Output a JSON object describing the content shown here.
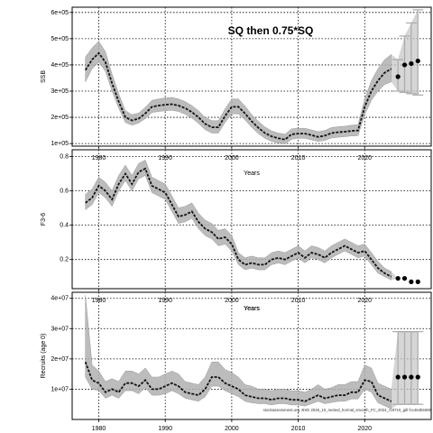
{
  "figure": {
    "title": "SQ then 0.75*SQ",
    "footnote": "stockassessment.org, BXD 2026_10_nested_hormal_smooth_FC_2024_r19710_gitl fcc464b6089"
  },
  "chart_data": [
    {
      "type": "line",
      "name": "ssb",
      "ylabel": "SSB",
      "xlabel": "Years",
      "xlim": [
        1976,
        2030
      ],
      "ylim": [
        90000,
        620000
      ],
      "x_ticks": [
        1980,
        1990,
        2000,
        2010,
        2020
      ],
      "y_ticks": [
        100000,
        200000,
        300000,
        400000,
        500000,
        600000
      ],
      "y_tick_labels": [
        "1e+05",
        "2e+05",
        "3e+05",
        "4e+05",
        "5e+05",
        "6e+05"
      ],
      "grid": true,
      "series": {
        "x": [
          1978,
          1979,
          1980,
          1981,
          1982,
          1983,
          1984,
          1985,
          1986,
          1987,
          1988,
          1989,
          1990,
          1991,
          1992,
          1993,
          1994,
          1995,
          1996,
          1997,
          1998,
          1999,
          2000,
          2001,
          2002,
          2003,
          2004,
          2005,
          2006,
          2007,
          2008,
          2009,
          2010,
          2011,
          2012,
          2013,
          2014,
          2015,
          2016,
          2017,
          2018,
          2019,
          2020,
          2021,
          2022,
          2023,
          2024
        ],
        "y": [
          380000,
          420000,
          445000,
          410000,
          330000,
          260000,
          200000,
          188000,
          195000,
          215000,
          240000,
          245000,
          248000,
          250000,
          245000,
          235000,
          220000,
          200000,
          175000,
          162000,
          162000,
          205000,
          240000,
          240000,
          215000,
          185000,
          160000,
          140000,
          127000,
          120000,
          115000,
          135000,
          138000,
          138000,
          132000,
          125000,
          130000,
          140000,
          143000,
          145000,
          148000,
          150000,
          240000,
          300000,
          340000,
          370000,
          385000
        ],
        "lower": [
          335000,
          385000,
          410000,
          375000,
          300000,
          235000,
          180000,
          170000,
          178000,
          195000,
          218000,
          222000,
          225000,
          227000,
          222000,
          212000,
          197000,
          177000,
          153000,
          140000,
          140000,
          180000,
          213000,
          213000,
          190000,
          162000,
          138000,
          120000,
          108000,
          102000,
          98000,
          116000,
          120000,
          120000,
          114000,
          108000,
          112000,
          121000,
          124000,
          126000,
          129000,
          130000,
          210000,
          265000,
          300000,
          325000,
          335000
        ],
        "upper": [
          430000,
          465000,
          490000,
          450000,
          365000,
          290000,
          225000,
          210000,
          216000,
          238000,
          265000,
          270000,
          274000,
          276000,
          270000,
          260000,
          245000,
          225000,
          200000,
          187000,
          187000,
          232000,
          270000,
          270000,
          243000,
          210000,
          185000,
          163000,
          148000,
          140000,
          135000,
          156000,
          158000,
          158000,
          152000,
          145000,
          150000,
          161000,
          164000,
          166000,
          170000,
          172000,
          270000,
          340000,
          385000,
          420000,
          440000
        ]
      },
      "forecast": {
        "x": [
          2025,
          2026,
          2027,
          2028
        ],
        "y": [
          355000,
          400000,
          405000,
          415000
        ],
        "lower": [
          300000,
          295000,
          290000,
          285000
        ],
        "upper": [
          420000,
          510000,
          560000,
          610000
        ]
      }
    },
    {
      "type": "line",
      "name": "fbar",
      "ylabel": "F3-6",
      "xlabel": "Years",
      "xlim": [
        1976,
        2030
      ],
      "ylim": [
        0.03,
        0.84
      ],
      "x_ticks": [
        1980,
        1990,
        2000,
        2010,
        2020
      ],
      "y_ticks": [
        0.2,
        0.4,
        0.6,
        0.8
      ],
      "y_tick_labels": [
        "0.2",
        "0.4",
        "0.6",
        "0.8"
      ],
      "grid": true,
      "series": {
        "x": [
          1978,
          1979,
          1980,
          1981,
          1982,
          1983,
          1984,
          1985,
          1986,
          1987,
          1988,
          1989,
          1990,
          1991,
          1992,
          1993,
          1994,
          1995,
          1996,
          1997,
          1998,
          1999,
          2000,
          2001,
          2002,
          2003,
          2004,
          2005,
          2006,
          2007,
          2008,
          2009,
          2010,
          2011,
          2012,
          2013,
          2014,
          2015,
          2016,
          2017,
          2018,
          2019,
          2020,
          2021,
          2022,
          2023,
          2024
        ],
        "y": [
          0.53,
          0.56,
          0.63,
          0.6,
          0.55,
          0.64,
          0.7,
          0.64,
          0.71,
          0.73,
          0.63,
          0.61,
          0.59,
          0.52,
          0.45,
          0.46,
          0.48,
          0.42,
          0.38,
          0.36,
          0.32,
          0.33,
          0.29,
          0.2,
          0.17,
          0.18,
          0.17,
          0.17,
          0.2,
          0.21,
          0.2,
          0.22,
          0.24,
          0.21,
          0.24,
          0.23,
          0.21,
          0.24,
          0.26,
          0.28,
          0.26,
          0.24,
          0.25,
          0.2,
          0.15,
          0.12,
          0.1
        ],
        "lower": [
          0.49,
          0.52,
          0.59,
          0.56,
          0.51,
          0.6,
          0.66,
          0.6,
          0.67,
          0.69,
          0.59,
          0.57,
          0.55,
          0.48,
          0.41,
          0.42,
          0.44,
          0.38,
          0.34,
          0.32,
          0.28,
          0.29,
          0.25,
          0.17,
          0.14,
          0.15,
          0.14,
          0.14,
          0.17,
          0.18,
          0.17,
          0.19,
          0.21,
          0.18,
          0.21,
          0.2,
          0.18,
          0.21,
          0.23,
          0.25,
          0.23,
          0.21,
          0.22,
          0.17,
          0.12,
          0.1,
          0.08
        ],
        "upper": [
          0.58,
          0.61,
          0.68,
          0.65,
          0.6,
          0.69,
          0.75,
          0.69,
          0.76,
          0.78,
          0.68,
          0.66,
          0.64,
          0.57,
          0.5,
          0.51,
          0.53,
          0.47,
          0.43,
          0.41,
          0.37,
          0.38,
          0.34,
          0.24,
          0.21,
          0.22,
          0.21,
          0.21,
          0.24,
          0.25,
          0.24,
          0.26,
          0.28,
          0.25,
          0.28,
          0.27,
          0.25,
          0.28,
          0.3,
          0.32,
          0.3,
          0.28,
          0.29,
          0.24,
          0.19,
          0.15,
          0.13
        ]
      },
      "forecast": {
        "x": [
          2025,
          2026,
          2027,
          2028
        ],
        "y": [
          0.09,
          0.09,
          0.07,
          0.07
        ],
        "lower": [
          0.09,
          0.09,
          0.07,
          0.07
        ],
        "upper": [
          0.09,
          0.09,
          0.07,
          0.07
        ]
      }
    },
    {
      "type": "line",
      "name": "recruits",
      "ylabel": "Recruits (age 0)",
      "xlabel": "Years",
      "xlim": [
        1976,
        2030
      ],
      "ylim": [
        0,
        42000000
      ],
      "x_ticks": [
        1980,
        1990,
        2000,
        2010,
        2020
      ],
      "y_ticks": [
        10000000,
        20000000,
        30000000,
        40000000
      ],
      "y_tick_labels": [
        "1e+07",
        "2e+07",
        "3e+07",
        "4e+07"
      ],
      "grid": true,
      "series": {
        "x": [
          1978,
          1979,
          1980,
          1981,
          1982,
          1983,
          1984,
          1985,
          1986,
          1987,
          1988,
          1989,
          1990,
          1991,
          1992,
          1993,
          1994,
          1995,
          1996,
          1997,
          1998,
          1999,
          2000,
          2001,
          2002,
          2003,
          2004,
          2005,
          2006,
          2007,
          2008,
          2009,
          2010,
          2011,
          2012,
          2013,
          2014,
          2015,
          2016,
          2017,
          2018,
          2019,
          2020,
          2021,
          2022,
          2023,
          2024
        ],
        "y": [
          19000000,
          13000000,
          12000000,
          9000000,
          10000000,
          9000000,
          12000000,
          12000000,
          11000000,
          13000000,
          10000000,
          10000000,
          11000000,
          12000000,
          11000000,
          9000000,
          8500000,
          8000000,
          10000000,
          14000000,
          14000000,
          12000000,
          11000000,
          10000000,
          8000000,
          7500000,
          7000000,
          7000000,
          6500000,
          7000000,
          7000000,
          6500000,
          6500000,
          6000000,
          7000000,
          8000000,
          7000000,
          7500000,
          8000000,
          8000000,
          9000000,
          9000000,
          13000000,
          12500000,
          8000000,
          7000000,
          6000000
        ],
        "lower": [
          14000000,
          10000000,
          9500000,
          7000000,
          8000000,
          7000000,
          9500000,
          9500000,
          8500000,
          10500000,
          8000000,
          8000000,
          8500000,
          9500000,
          8500000,
          7000000,
          6500000,
          6000000,
          7500000,
          11000000,
          11000000,
          9500000,
          8500000,
          7500000,
          6000000,
          5500000,
          5200000,
          5200000,
          4800000,
          5200000,
          5200000,
          4800000,
          4800000,
          4400000,
          5200000,
          6000000,
          5200000,
          5600000,
          6000000,
          6000000,
          6800000,
          6800000,
          10000000,
          9000000,
          5500000,
          4500000,
          3500000
        ],
        "upper": [
          41000000,
          18000000,
          16000000,
          12500000,
          13500000,
          12500000,
          16000000,
          16000000,
          15000000,
          17000000,
          14000000,
          14000000,
          15000000,
          16000000,
          15000000,
          12500000,
          12000000,
          11500000,
          14000000,
          19000000,
          19000000,
          16500000,
          15500000,
          14000000,
          11500000,
          11000000,
          10000000,
          10000000,
          9500000,
          10000000,
          10000000,
          9500000,
          9500000,
          9000000,
          10000000,
          11500000,
          10000000,
          10500000,
          11500000,
          11500000,
          12500000,
          12500000,
          18000000,
          17000000,
          12000000,
          11000000,
          10000000
        ]
      },
      "forecast": {
        "x": [
          2025,
          2026,
          2027,
          2028
        ],
        "y": [
          14000000,
          14000000,
          14000000,
          14000000
        ],
        "lower": [
          5000000,
          5000000,
          5000000,
          5000000
        ],
        "upper": [
          29000000,
          29000000,
          29000000,
          29000000
        ]
      }
    }
  ]
}
